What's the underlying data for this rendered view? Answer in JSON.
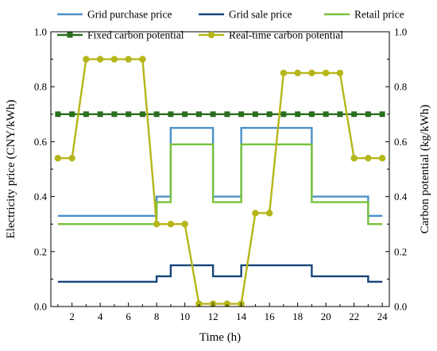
{
  "chart_data": {
    "type": "line",
    "xlabel": "Time (h)",
    "ylabel_left": "Electricity price (CNY/kWh)",
    "ylabel_right": "Carbon potential (kg/kWh)",
    "xlim": [
      0.5,
      24.5
    ],
    "ylim_left": [
      0,
      1.0
    ],
    "ylim_right": [
      0,
      1.0
    ],
    "x_ticks": [
      2,
      4,
      6,
      8,
      10,
      12,
      14,
      16,
      18,
      20,
      22,
      24
    ],
    "y_ticks": [
      "0.0",
      "0.2",
      "0.4",
      "0.6",
      "0.8",
      "1.0"
    ],
    "grid": false,
    "legend_position": "top",
    "series": [
      {
        "name": "Grid purchase price",
        "style": "step",
        "color": "#4a90c8",
        "x": [
          1,
          2,
          3,
          4,
          5,
          6,
          7,
          8,
          9,
          10,
          11,
          12,
          13,
          14,
          15,
          16,
          17,
          18,
          19,
          20,
          21,
          22,
          23,
          24
        ],
        "values": [
          0.33,
          0.33,
          0.33,
          0.33,
          0.33,
          0.33,
          0.33,
          0.4,
          0.65,
          0.65,
          0.65,
          0.4,
          0.4,
          0.65,
          0.65,
          0.65,
          0.65,
          0.65,
          0.4,
          0.4,
          0.4,
          0.4,
          0.33,
          0.33
        ]
      },
      {
        "name": "Grid sale price",
        "style": "step",
        "color": "#17467a",
        "x": [
          1,
          2,
          3,
          4,
          5,
          6,
          7,
          8,
          9,
          10,
          11,
          12,
          13,
          14,
          15,
          16,
          17,
          18,
          19,
          20,
          21,
          22,
          23,
          24
        ],
        "values": [
          0.09,
          0.09,
          0.09,
          0.09,
          0.09,
          0.09,
          0.09,
          0.11,
          0.15,
          0.15,
          0.15,
          0.11,
          0.11,
          0.15,
          0.15,
          0.15,
          0.15,
          0.15,
          0.11,
          0.11,
          0.11,
          0.11,
          0.09,
          0.09
        ]
      },
      {
        "name": "Retail price",
        "style": "step",
        "color": "#77c23a",
        "x": [
          1,
          2,
          3,
          4,
          5,
          6,
          7,
          8,
          9,
          10,
          11,
          12,
          13,
          14,
          15,
          16,
          17,
          18,
          19,
          20,
          21,
          22,
          23,
          24
        ],
        "values": [
          0.3,
          0.3,
          0.3,
          0.3,
          0.3,
          0.3,
          0.3,
          0.38,
          0.59,
          0.59,
          0.59,
          0.38,
          0.38,
          0.59,
          0.59,
          0.59,
          0.59,
          0.59,
          0.38,
          0.38,
          0.38,
          0.38,
          0.3,
          0.3
        ]
      },
      {
        "name": "Fixed carbon potential",
        "style": "line-square",
        "color": "#2a6e1e",
        "x": [
          1,
          2,
          3,
          4,
          5,
          6,
          7,
          8,
          9,
          10,
          11,
          12,
          13,
          14,
          15,
          16,
          17,
          18,
          19,
          20,
          21,
          22,
          23,
          24
        ],
        "values": [
          0.7,
          0.7,
          0.7,
          0.7,
          0.7,
          0.7,
          0.7,
          0.7,
          0.7,
          0.7,
          0.7,
          0.7,
          0.7,
          0.7,
          0.7,
          0.7,
          0.7,
          0.7,
          0.7,
          0.7,
          0.7,
          0.7,
          0.7,
          0.7
        ]
      },
      {
        "name": "Real-time carbon potential",
        "style": "line-circle",
        "color": "#b5b619",
        "x": [
          1,
          2,
          3,
          4,
          5,
          6,
          7,
          8,
          9,
          10,
          11,
          12,
          13,
          14,
          15,
          16,
          17,
          18,
          19,
          20,
          21,
          22,
          23,
          24
        ],
        "values": [
          0.54,
          0.54,
          0.9,
          0.9,
          0.9,
          0.9,
          0.9,
          0.3,
          0.3,
          0.3,
          0.01,
          0.01,
          0.01,
          0.01,
          0.34,
          0.34,
          0.85,
          0.85,
          0.85,
          0.85,
          0.85,
          0.54,
          0.54,
          0.54
        ]
      }
    ]
  }
}
